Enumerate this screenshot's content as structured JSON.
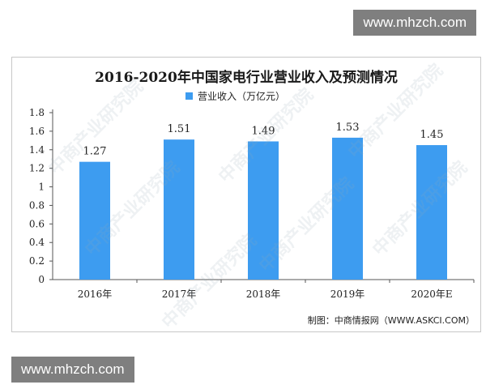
{
  "watermark": {
    "site": "www.mhzch.com",
    "brand": "中商产业研究院"
  },
  "chart_data": {
    "type": "bar",
    "title": "2016-2020年中国家电行业营业收入及预测情况",
    "categories": [
      "2016年",
      "2017年",
      "2018年",
      "2019年",
      "2020年E"
    ],
    "series": [
      {
        "name": "营业收入（万亿元）",
        "values": [
          1.27,
          1.51,
          1.49,
          1.53,
          1.45
        ]
      }
    ],
    "data_labels": [
      "1.27",
      "1.51",
      "1.49",
      "1.53",
      "1.45"
    ],
    "y_ticks": [
      "0",
      "0.2",
      "0.4",
      "0.6",
      "0.8",
      "1",
      "1.2",
      "1.4",
      "1.6",
      "1.8"
    ],
    "ylim": [
      0,
      1.8
    ],
    "grid": false,
    "legend_position": "top",
    "bar_color": "#3d9cf0",
    "source": "制图：中商情报网（WWW.ASKCI.COM）"
  }
}
